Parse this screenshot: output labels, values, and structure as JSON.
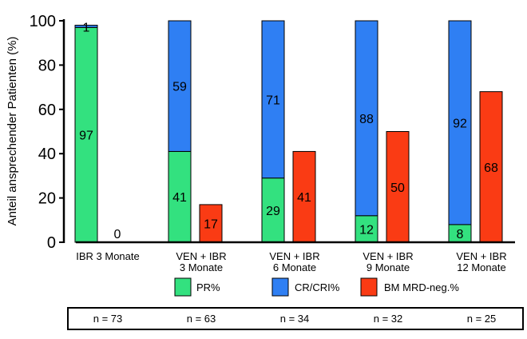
{
  "chart_data": {
    "type": "bar",
    "ylabel": "Anteil ansprechender Patienten (%)",
    "ylim": [
      0,
      100
    ],
    "yticks": [
      0,
      20,
      40,
      60,
      80,
      100
    ],
    "grid": false,
    "legend_position": "bottom",
    "legend": [
      {
        "label": "PR%",
        "color": "#33e17f"
      },
      {
        "label": "CR/CRI%",
        "color": "#2f7ff3"
      },
      {
        "label": "BM MRD-neg.%",
        "color": "#fa3b14"
      }
    ],
    "groups": [
      {
        "label_lines": [
          "IBR 3 Monate"
        ],
        "stack": {
          "pr": 97,
          "cr": 1
        },
        "stack_labels": {
          "pr": "97",
          "cr": "1"
        },
        "mrd": 0,
        "mrd_label": "0",
        "n": "n = 73"
      },
      {
        "label_lines": [
          "VEN + IBR",
          "3 Monate"
        ],
        "stack": {
          "pr": 41,
          "cr": 59
        },
        "stack_labels": {
          "pr": "41",
          "cr": "59"
        },
        "mrd": 17,
        "mrd_label": "17",
        "n": "n = 63"
      },
      {
        "label_lines": [
          "VEN + IBR",
          "6 Monate"
        ],
        "stack": {
          "pr": 29,
          "cr": 71
        },
        "stack_labels": {
          "pr": "29",
          "cr": "71"
        },
        "mrd": 41,
        "mrd_label": "41",
        "n": "n = 34"
      },
      {
        "label_lines": [
          "VEN + IBR",
          "9 Monate"
        ],
        "stack": {
          "pr": 12,
          "cr": 88
        },
        "stack_labels": {
          "pr": "12",
          "cr": "88"
        },
        "mrd": 50,
        "mrd_label": "50",
        "n": "n = 32"
      },
      {
        "label_lines": [
          "VEN + IBR",
          "12 Monate"
        ],
        "stack": {
          "pr": 8,
          "cr": 92
        },
        "stack_labels": {
          "pr": "8",
          "cr": "92"
        },
        "mrd": 68,
        "mrd_label": "68",
        "n": "n = 25"
      }
    ]
  }
}
